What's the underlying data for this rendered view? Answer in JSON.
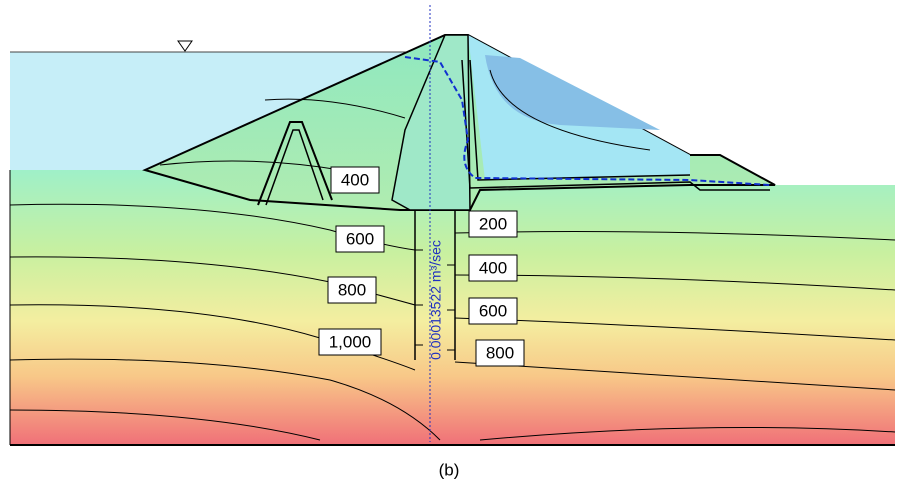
{
  "figure": {
    "contour_labels_upstream": [
      "400",
      "600",
      "800",
      "1,000"
    ],
    "contour_labels_downstream": [
      "200",
      "400",
      "600",
      "800"
    ],
    "flux_label": "0.00013522 m³/sec"
  },
  "caption": "(b)"
}
